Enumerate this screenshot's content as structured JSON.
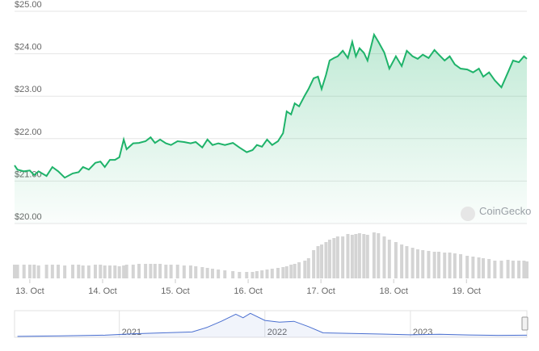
{
  "chart_data": [
    {
      "type": "line",
      "watermark": "CoinGecko",
      "color": "#1fb36a",
      "grid": true,
      "xlim": [
        12.79,
        19.83
      ],
      "xticks": [
        {
          "value": 13,
          "label": "13. Oct"
        },
        {
          "value": 14,
          "label": "14. Oct"
        },
        {
          "value": 15,
          "label": "15. Oct"
        },
        {
          "value": 16,
          "label": "16. Oct"
        },
        {
          "value": 17,
          "label": "17. Oct"
        },
        {
          "value": 18,
          "label": "18. Oct"
        },
        {
          "value": 19,
          "label": "19. Oct"
        }
      ],
      "ylim": [
        20,
        25
      ],
      "yticks": [
        {
          "value": 20,
          "label": "$20.00"
        },
        {
          "value": 21,
          "label": "$21.00"
        },
        {
          "value": 22,
          "label": "$22.00"
        },
        {
          "value": 23,
          "label": "$23.00"
        },
        {
          "value": 24,
          "label": "$24.00"
        },
        {
          "value": 25,
          "label": "$25.00"
        }
      ],
      "x": [
        12.79,
        12.83,
        12.92,
        13.0,
        13.06,
        13.12,
        13.23,
        13.31,
        13.39,
        13.48,
        13.59,
        13.67,
        13.73,
        13.81,
        13.9,
        13.97,
        14.03,
        14.1,
        14.17,
        14.23,
        14.29,
        14.33,
        14.42,
        14.5,
        14.59,
        14.66,
        14.72,
        14.79,
        14.87,
        14.94,
        15.03,
        15.12,
        15.21,
        15.28,
        15.37,
        15.44,
        15.51,
        15.59,
        15.68,
        15.79,
        15.88,
        15.98,
        16.06,
        16.12,
        16.19,
        16.26,
        16.33,
        16.41,
        16.48,
        16.53,
        16.59,
        16.64,
        16.7,
        16.78,
        16.83,
        16.9,
        16.96,
        17.01,
        17.07,
        17.12,
        17.18,
        17.23,
        17.3,
        17.37,
        17.43,
        17.48,
        17.53,
        17.59,
        17.64,
        17.73,
        17.79,
        17.87,
        17.94,
        18.03,
        18.11,
        18.18,
        18.26,
        18.33,
        18.4,
        18.48,
        18.56,
        18.62,
        18.7,
        18.77,
        18.84,
        18.92,
        19.01,
        19.09,
        19.17,
        19.23,
        19.31,
        19.39,
        19.48,
        19.57,
        19.64,
        19.72,
        19.79,
        19.83
      ],
      "values": [
        21.37,
        21.27,
        21.23,
        21.25,
        21.14,
        21.23,
        21.12,
        21.33,
        21.23,
        21.08,
        21.18,
        21.21,
        21.33,
        21.27,
        21.43,
        21.46,
        21.33,
        21.5,
        21.5,
        21.56,
        21.98,
        21.75,
        21.89,
        21.9,
        21.94,
        22.03,
        21.9,
        21.98,
        21.89,
        21.85,
        21.94,
        21.92,
        21.89,
        21.92,
        21.79,
        21.98,
        21.85,
        21.89,
        21.85,
        21.9,
        21.79,
        21.68,
        21.73,
        21.85,
        21.81,
        21.98,
        21.85,
        21.94,
        22.13,
        22.64,
        22.57,
        22.83,
        22.76,
        23.02,
        23.17,
        23.42,
        23.46,
        23.17,
        23.5,
        23.84,
        23.9,
        23.94,
        24.07,
        23.9,
        24.28,
        23.94,
        24.13,
        24.02,
        23.84,
        24.45,
        24.28,
        24.03,
        23.65,
        23.94,
        23.71,
        24.07,
        23.94,
        23.88,
        23.98,
        23.9,
        24.09,
        23.98,
        23.84,
        23.94,
        23.75,
        23.65,
        23.63,
        23.56,
        23.65,
        23.46,
        23.56,
        23.37,
        23.21,
        23.56,
        23.84,
        23.8,
        23.94,
        23.88
      ]
    },
    {
      "type": "bar",
      "color": "#d4d4d4",
      "xlim": [
        12.79,
        19.83
      ],
      "ylim": [
        0,
        60
      ],
      "x": [
        12.79,
        12.83,
        12.92,
        13.0,
        13.06,
        13.12,
        13.23,
        13.31,
        13.39,
        13.48,
        13.59,
        13.67,
        13.73,
        13.81,
        13.9,
        13.97,
        14.03,
        14.1,
        14.17,
        14.23,
        14.29,
        14.33,
        14.42,
        14.5,
        14.59,
        14.66,
        14.72,
        14.79,
        14.87,
        14.94,
        15.03,
        15.12,
        15.21,
        15.28,
        15.37,
        15.44,
        15.51,
        15.59,
        15.68,
        15.79,
        15.88,
        15.98,
        16.06,
        16.12,
        16.19,
        16.26,
        16.33,
        16.41,
        16.48,
        16.53,
        16.59,
        16.64,
        16.7,
        16.78,
        16.83,
        16.9,
        16.96,
        17.01,
        17.07,
        17.12,
        17.18,
        17.23,
        17.3,
        17.37,
        17.43,
        17.48,
        17.53,
        17.59,
        17.64,
        17.73,
        17.79,
        17.87,
        17.94,
        18.03,
        18.11,
        18.18,
        18.26,
        18.33,
        18.4,
        18.48,
        18.56,
        18.62,
        18.7,
        18.77,
        18.84,
        18.92,
        19.01,
        19.09,
        19.17,
        19.23,
        19.31,
        19.39,
        19.48,
        19.57,
        19.64,
        19.72,
        19.79,
        19.83
      ],
      "values": [
        17,
        17,
        17,
        17,
        17,
        16,
        17,
        17,
        17,
        16,
        17,
        17,
        16,
        16,
        17,
        17,
        16,
        16,
        16,
        15,
        16,
        17,
        17,
        18,
        18,
        18,
        18,
        18,
        17,
        17,
        17,
        16,
        16,
        15,
        14,
        13,
        12,
        11,
        10,
        9,
        8,
        8,
        8,
        9,
        10,
        11,
        12,
        13,
        14,
        15,
        17,
        18,
        20,
        22,
        25,
        35,
        40,
        42,
        45,
        48,
        50,
        52,
        52,
        55,
        54,
        55,
        56,
        55,
        54,
        57,
        56,
        52,
        48,
        45,
        42,
        40,
        38,
        36,
        35,
        34,
        33,
        33,
        32,
        32,
        31,
        30,
        28,
        27,
        26,
        25,
        24,
        22,
        22,
        23,
        22,
        22,
        22,
        21
      ]
    },
    {
      "type": "area",
      "color": "#4a6fd0",
      "xlim": [
        2020.28,
        2023.8
      ],
      "ylim": [
        0,
        150
      ],
      "xticks": [
        2021,
        2022,
        2023
      ],
      "x": [
        2020.3,
        2020.6,
        2020.9,
        2021.1,
        2021.3,
        2021.5,
        2021.6,
        2021.7,
        2021.8,
        2021.85,
        2021.9,
        2022.0,
        2022.1,
        2022.2,
        2022.3,
        2022.4,
        2022.6,
        2022.8,
        2023.0,
        2023.2,
        2023.4,
        2023.6,
        2023.8
      ],
      "values": [
        5,
        8,
        12,
        20,
        25,
        30,
        55,
        90,
        130,
        110,
        135,
        95,
        85,
        90,
        60,
        25,
        22,
        18,
        14,
        17,
        13,
        11,
        12
      ]
    }
  ]
}
